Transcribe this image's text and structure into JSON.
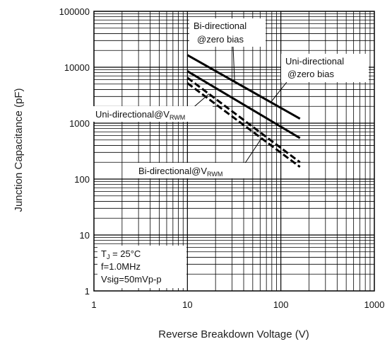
{
  "chart_data": {
    "type": "line",
    "title": "",
    "xlabel": "Reverse Breakdown Voltage (V)",
    "ylabel": "Junction Capacitance (pF)",
    "xscale": "log",
    "yscale": "log",
    "xlim": [
      1,
      1000
    ],
    "ylim": [
      1,
      100000
    ],
    "grid": true,
    "x_ticks": [
      "1",
      "10",
      "100",
      "1000"
    ],
    "y_ticks": [
      "1",
      "10",
      "100",
      "1000",
      "10000",
      "100000"
    ],
    "series": [
      {
        "name": "Bi-directional @zero bias",
        "style": "solid",
        "x": [
          10,
          160
        ],
        "y": [
          16500,
          1200
        ]
      },
      {
        "name": "Uni-directional @zero bias",
        "style": "solid",
        "x": [
          10,
          160
        ],
        "y": [
          8500,
          540
        ]
      },
      {
        "name": "Uni-directional@VRWM",
        "style": "dashed",
        "x": [
          10,
          160
        ],
        "y": [
          6500,
          200
        ]
      },
      {
        "name": "Bi-directional@VRWM",
        "style": "dashed",
        "x": [
          10,
          160
        ],
        "y": [
          5200,
          165
        ]
      }
    ],
    "annotations": {
      "bi_zero": [
        "Bi-directional",
        "@zero bias"
      ],
      "uni_zero": [
        "Uni-directional",
        "@zero bias"
      ],
      "uni_vrwm": {
        "main": "Uni-directional@V",
        "sub": "RWM"
      },
      "bi_vrwm": {
        "main": "Bi-directional@V",
        "sub": "RWM"
      },
      "conditions": {
        "tj_main": "T",
        "tj_sub": "J",
        "tj_rest": " = 25°C",
        "freq": "f=1.0MHz",
        "vsig": "Vsig=50mVp-p"
      }
    }
  }
}
